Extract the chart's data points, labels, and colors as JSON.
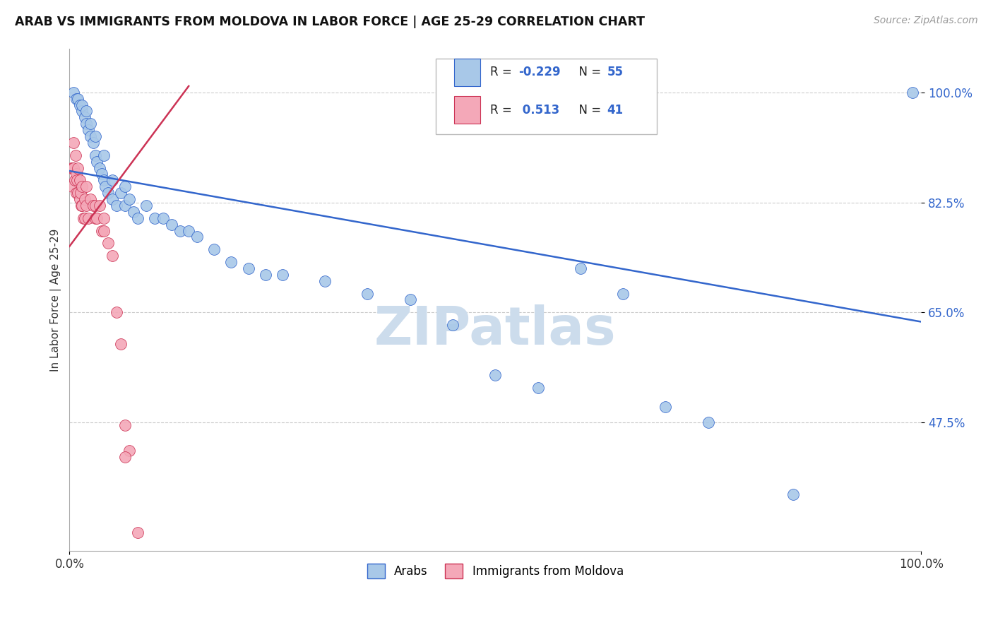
{
  "title": "ARAB VS IMMIGRANTS FROM MOLDOVA IN LABOR FORCE | AGE 25-29 CORRELATION CHART",
  "source": "Source: ZipAtlas.com",
  "ylabel": "In Labor Force | Age 25-29",
  "xlim": [
    0.0,
    1.0
  ],
  "ylim": [
    0.27,
    1.07
  ],
  "yticks": [
    0.475,
    0.65,
    0.825,
    1.0
  ],
  "ytick_labels": [
    "47.5%",
    "65.0%",
    "82.5%",
    "100.0%"
  ],
  "xtick_labels": [
    "0.0%",
    "100.0%"
  ],
  "xticks": [
    0.0,
    1.0
  ],
  "legend_r_blue": "-0.229",
  "legend_n_blue": "55",
  "legend_r_pink": "0.513",
  "legend_n_pink": "41",
  "color_blue": "#a8c8e8",
  "color_pink": "#f4a8b8",
  "line_color_blue": "#3366cc",
  "line_color_pink": "#cc3355",
  "watermark": "ZIPatlas",
  "watermark_color": "#ccdcec",
  "blue_trend_x": [
    0.0,
    1.0
  ],
  "blue_trend_y": [
    0.875,
    0.635
  ],
  "pink_trend_x": [
    0.0,
    0.14
  ],
  "pink_trend_y": [
    0.755,
    1.01
  ],
  "blue_x": [
    0.005,
    0.008,
    0.01,
    0.012,
    0.015,
    0.015,
    0.018,
    0.02,
    0.02,
    0.022,
    0.025,
    0.025,
    0.028,
    0.03,
    0.03,
    0.032,
    0.035,
    0.038,
    0.04,
    0.04,
    0.042,
    0.045,
    0.05,
    0.05,
    0.055,
    0.06,
    0.065,
    0.065,
    0.07,
    0.075,
    0.08,
    0.09,
    0.1,
    0.11,
    0.12,
    0.13,
    0.14,
    0.15,
    0.17,
    0.19,
    0.21,
    0.23,
    0.25,
    0.3,
    0.35,
    0.4,
    0.45,
    0.5,
    0.55,
    0.6,
    0.65,
    0.7,
    0.75,
    0.85,
    0.99
  ],
  "blue_y": [
    1.0,
    0.99,
    0.99,
    0.98,
    0.97,
    0.98,
    0.96,
    0.95,
    0.97,
    0.94,
    0.93,
    0.95,
    0.92,
    0.9,
    0.93,
    0.89,
    0.88,
    0.87,
    0.86,
    0.9,
    0.85,
    0.84,
    0.86,
    0.83,
    0.82,
    0.84,
    0.82,
    0.85,
    0.83,
    0.81,
    0.8,
    0.82,
    0.8,
    0.8,
    0.79,
    0.78,
    0.78,
    0.77,
    0.75,
    0.73,
    0.72,
    0.71,
    0.71,
    0.7,
    0.68,
    0.67,
    0.63,
    0.55,
    0.53,
    0.72,
    0.68,
    0.5,
    0.475,
    0.36,
    1.0
  ],
  "pink_x": [
    0.002,
    0.003,
    0.004,
    0.005,
    0.005,
    0.006,
    0.007,
    0.008,
    0.008,
    0.009,
    0.01,
    0.01,
    0.012,
    0.012,
    0.013,
    0.014,
    0.015,
    0.015,
    0.016,
    0.018,
    0.018,
    0.02,
    0.02,
    0.022,
    0.025,
    0.028,
    0.03,
    0.03,
    0.032,
    0.035,
    0.038,
    0.04,
    0.04,
    0.045,
    0.05,
    0.055,
    0.06,
    0.065,
    0.07,
    0.08,
    0.065
  ],
  "pink_y": [
    0.88,
    0.85,
    0.88,
    0.92,
    0.88,
    0.86,
    0.9,
    0.87,
    0.84,
    0.86,
    0.88,
    0.84,
    0.86,
    0.83,
    0.84,
    0.82,
    0.85,
    0.82,
    0.8,
    0.83,
    0.8,
    0.85,
    0.82,
    0.8,
    0.83,
    0.82,
    0.8,
    0.82,
    0.8,
    0.82,
    0.78,
    0.8,
    0.78,
    0.76,
    0.74,
    0.65,
    0.6,
    0.47,
    0.43,
    0.3,
    0.42
  ]
}
